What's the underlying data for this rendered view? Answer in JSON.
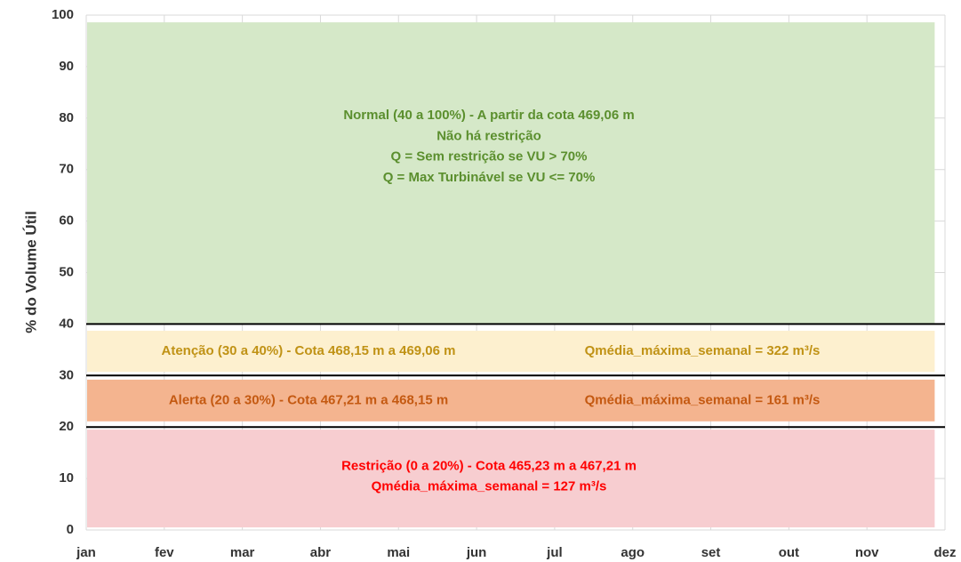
{
  "chart_data": {
    "type": "zone",
    "y_label": "% do Volume Útil",
    "categories": [
      "jan",
      "fev",
      "mar",
      "abr",
      "mai",
      "jun",
      "jul",
      "ago",
      "set",
      "out",
      "nov",
      "dez"
    ],
    "ylim": [
      0,
      100
    ],
    "yticks": [
      0,
      10,
      20,
      30,
      40,
      50,
      60,
      70,
      80,
      90,
      100
    ],
    "grid": true,
    "thresholds": [
      40,
      30,
      20
    ],
    "threshold_color": "#000000",
    "bands": [
      {
        "low": 40,
        "high": 98.6,
        "color": "#d5e8c8",
        "text_color": "#5b8f2e",
        "lines": [
          "Normal (40 a 100%) - A partir da cota 469,06 m",
          "Não há restrição",
          "Q = Sem restrição se VU > 70%",
          "Q = Max Turbinável se VU <= 70%"
        ]
      },
      {
        "low": 30.7,
        "high": 38.7,
        "color": "#fdf0cf",
        "text_color": "#c09215",
        "lines": [
          "Atenção (30 a 40%) - Cota 468,15 m a 469,06 m"
        ],
        "flow": "Qmédia_máxima_semanal  = 322 m³/s"
      },
      {
        "low": 21.1,
        "high": 29.2,
        "color": "#f4b48f",
        "text_color": "#c45911",
        "lines": [
          "Alerta (20 a 30%) - Cota 467,21 m a 468,15 m"
        ],
        "flow": "Qmédia_máxima_semanal  = 161 m³/s"
      },
      {
        "low": 0.5,
        "high": 19.5,
        "color": "#f7cdd0",
        "text_color": "#ff0000",
        "lines": [
          "Restrição (0 a 20%) - Cota 465,23 m a 467,21 m",
          "Qmédia_máxima_semanal  = 127 m³/s"
        ]
      }
    ]
  }
}
